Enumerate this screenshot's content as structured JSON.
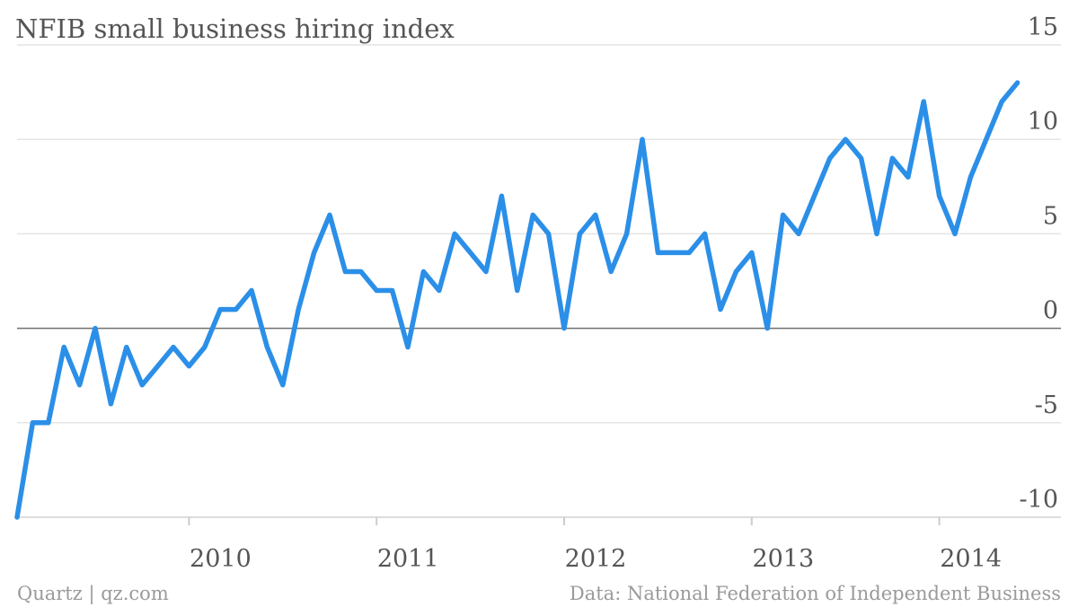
{
  "chart_data": {
    "type": "line",
    "title": "NFIB small business hiring index",
    "xlabel": "",
    "ylabel": "",
    "x_start": "2009-02",
    "x_unit": "month",
    "y_ticks": [
      15,
      10,
      5,
      0,
      -5,
      -10
    ],
    "x_ticks": [
      "2010",
      "2011",
      "2012",
      "2013",
      "2014"
    ],
    "ylim": [
      -10,
      15
    ],
    "grid": true,
    "legend": "none",
    "series": [
      {
        "values": [
          -10,
          -5,
          -5,
          -1,
          -3,
          0,
          -4,
          -1,
          -3,
          -2,
          -1,
          -2,
          -1,
          1,
          1,
          2,
          -1,
          -3,
          1,
          4,
          6,
          3,
          3,
          2,
          2,
          -1,
          3,
          2,
          5,
          4,
          3,
          7,
          2,
          6,
          5,
          0,
          5,
          6,
          3,
          5,
          10,
          4,
          4,
          4,
          5,
          1,
          3,
          4,
          0,
          6,
          5,
          7,
          9,
          10,
          9,
          5,
          9,
          8,
          12,
          7,
          5,
          8,
          10,
          12,
          13
        ],
        "color": "#2b8fe8"
      }
    ]
  },
  "footer": {
    "source_left": "Quartz | qz.com",
    "source_right": "Data: National Federation of Independent Business"
  }
}
